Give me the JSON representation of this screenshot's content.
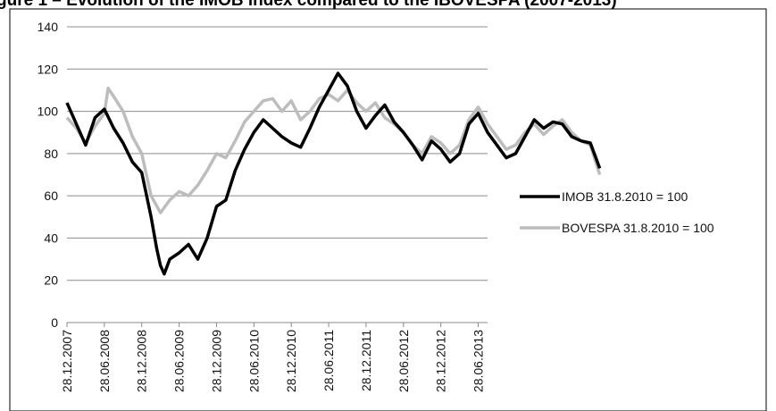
{
  "title": "gure 1 – Evolution of the IMOB index compared to the IBOVESPA (2007-2013)",
  "chart_data": {
    "type": "line",
    "title": "",
    "xlabel": "",
    "ylabel": "",
    "ylim": [
      0,
      140
    ],
    "yticks": [
      0,
      20,
      40,
      60,
      80,
      100,
      120,
      140
    ],
    "x_tick_labels": [
      "28.12.2007",
      "28.06.2008",
      "28.12.2008",
      "28.06.2009",
      "28.12.2009",
      "28.06.2010",
      "28.12.2010",
      "28.06.2011",
      "28.12.2011",
      "28.06.2012",
      "28.12.2012",
      "28.06.2013"
    ],
    "grid": "horizontal",
    "legend_position": "right",
    "series": [
      {
        "name": "IMOB 31.8.2010 = 100",
        "color": "#000000",
        "values": [
          [
            0,
            104
          ],
          [
            0.25,
            94
          ],
          [
            0.5,
            84
          ],
          [
            0.75,
            97
          ],
          [
            1,
            101
          ],
          [
            1.25,
            92
          ],
          [
            1.5,
            85
          ],
          [
            1.75,
            76
          ],
          [
            2,
            71
          ],
          [
            2.25,
            50
          ],
          [
            2.4,
            35
          ],
          [
            2.5,
            27
          ],
          [
            2.6,
            23
          ],
          [
            2.75,
            30
          ],
          [
            3,
            33
          ],
          [
            3.25,
            37
          ],
          [
            3.5,
            30
          ],
          [
            3.75,
            40
          ],
          [
            4,
            55
          ],
          [
            4.25,
            58
          ],
          [
            4.5,
            72
          ],
          [
            4.75,
            82
          ],
          [
            5,
            90
          ],
          [
            5.25,
            96
          ],
          [
            5.5,
            92
          ],
          [
            5.75,
            88
          ],
          [
            6,
            85
          ],
          [
            6.25,
            83
          ],
          [
            6.5,
            92
          ],
          [
            6.75,
            102
          ],
          [
            7,
            110
          ],
          [
            7.25,
            118
          ],
          [
            7.5,
            112
          ],
          [
            7.75,
            100
          ],
          [
            8,
            92
          ],
          [
            8.25,
            98
          ],
          [
            8.5,
            103
          ],
          [
            8.75,
            95
          ],
          [
            9,
            90
          ],
          [
            9.25,
            84
          ],
          [
            9.5,
            77
          ],
          [
            9.75,
            86
          ],
          [
            10,
            82
          ],
          [
            10.25,
            76
          ],
          [
            10.5,
            80
          ],
          [
            10.75,
            94
          ],
          [
            11,
            99
          ],
          [
            11.25,
            90
          ],
          [
            11.5,
            84
          ],
          [
            11.75,
            78
          ],
          [
            12,
            80
          ],
          [
            12.25,
            88
          ],
          [
            12.5,
            96
          ],
          [
            12.75,
            92
          ],
          [
            13,
            95
          ],
          [
            13.25,
            94
          ],
          [
            13.5,
            88
          ],
          [
            13.75,
            86
          ],
          [
            14,
            85
          ],
          [
            14.25,
            73
          ]
        ]
      },
      {
        "name": "BOVESPA 31.8.2010 = 100",
        "color": "#bdbdbd",
        "values": [
          [
            0,
            97
          ],
          [
            0.25,
            92
          ],
          [
            0.5,
            85
          ],
          [
            0.75,
            93
          ],
          [
            1,
            99
          ],
          [
            1.1,
            111
          ],
          [
            1.25,
            107
          ],
          [
            1.5,
            100
          ],
          [
            1.75,
            88
          ],
          [
            2,
            80
          ],
          [
            2.25,
            60
          ],
          [
            2.5,
            52
          ],
          [
            2.75,
            58
          ],
          [
            3,
            62
          ],
          [
            3.25,
            60
          ],
          [
            3.5,
            65
          ],
          [
            3.75,
            72
          ],
          [
            4,
            80
          ],
          [
            4.25,
            78
          ],
          [
            4.5,
            86
          ],
          [
            4.75,
            95
          ],
          [
            5,
            100
          ],
          [
            5.25,
            105
          ],
          [
            5.5,
            106
          ],
          [
            5.75,
            100
          ],
          [
            6,
            105
          ],
          [
            6.25,
            96
          ],
          [
            6.5,
            100
          ],
          [
            6.75,
            106
          ],
          [
            7,
            108
          ],
          [
            7.25,
            105
          ],
          [
            7.5,
            110
          ],
          [
            7.75,
            104
          ],
          [
            8,
            100
          ],
          [
            8.25,
            104
          ],
          [
            8.5,
            97
          ],
          [
            8.75,
            94
          ],
          [
            9,
            90
          ],
          [
            9.25,
            84
          ],
          [
            9.5,
            80
          ],
          [
            9.75,
            88
          ],
          [
            10,
            85
          ],
          [
            10.25,
            80
          ],
          [
            10.5,
            84
          ],
          [
            10.75,
            96
          ],
          [
            11,
            102
          ],
          [
            11.25,
            94
          ],
          [
            11.5,
            88
          ],
          [
            11.75,
            82
          ],
          [
            12,
            84
          ],
          [
            12.25,
            90
          ],
          [
            12.5,
            94
          ],
          [
            12.75,
            89
          ],
          [
            13,
            93
          ],
          [
            13.25,
            96
          ],
          [
            13.5,
            90
          ],
          [
            13.75,
            86
          ],
          [
            14,
            84
          ],
          [
            14.25,
            70
          ]
        ]
      }
    ]
  }
}
